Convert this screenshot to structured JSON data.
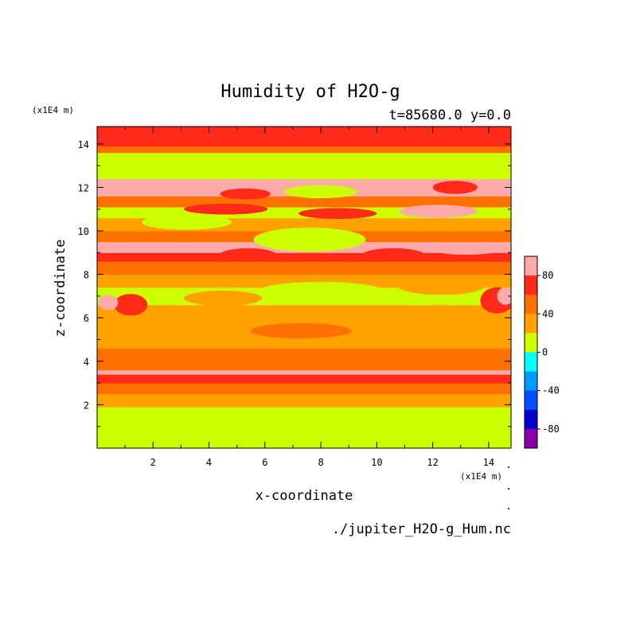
{
  "chart_data": {
    "type": "heatmap",
    "title": "Humidity of H2O-g",
    "subtitle": "t=85680.0 y=0.0",
    "xlabel": "x-coordinate",
    "ylabel": "z-coordinate",
    "x_unit": "(x1E4 m)",
    "y_unit": "(x1E4 m)",
    "filename": "./jupiter_H2O-g_Hum.nc",
    "xlim": [
      0,
      14.8
    ],
    "ylim": [
      0,
      14.8
    ],
    "x_ticks": [
      "2",
      "4",
      "6",
      "8",
      "10",
      "12",
      "14"
    ],
    "y_ticks": [
      "2",
      "4",
      "6",
      "8",
      "10",
      "12",
      "14"
    ],
    "colorbar": {
      "range": [
        -100,
        100
      ],
      "labels": [
        "80",
        "40",
        "0",
        "-40",
        "-80"
      ],
      "levels": [
        {
          "from": 80,
          "to": 100,
          "color": "#ffaaaa"
        },
        {
          "from": 60,
          "to": 80,
          "color": "#ff2a1a"
        },
        {
          "from": 40,
          "to": 60,
          "color": "#ff7000"
        },
        {
          "from": 20,
          "to": 40,
          "color": "#ffa200"
        },
        {
          "from": 0,
          "to": 20,
          "color": "#ccff00"
        },
        {
          "from": -20,
          "to": 0,
          "color": "#00ffff"
        },
        {
          "from": -40,
          "to": -20,
          "color": "#0099ff"
        },
        {
          "from": -60,
          "to": -40,
          "color": "#0050ff"
        },
        {
          "from": -80,
          "to": -60,
          "color": "#0000cc"
        },
        {
          "from": -100,
          "to": -80,
          "color": "#8800aa"
        }
      ]
    },
    "bands": [
      {
        "z0": 0.0,
        "z1": 1.4,
        "value": 10
      },
      {
        "z0": 1.4,
        "z1": 1.9,
        "value": 10
      },
      {
        "z0": 1.9,
        "z1": 2.5,
        "value": 30
      },
      {
        "z0": 2.5,
        "z1": 3.0,
        "value": 50
      },
      {
        "z0": 3.0,
        "z1": 3.4,
        "value": 70
      },
      {
        "z0": 3.4,
        "z1": 3.6,
        "value": 90
      },
      {
        "z0": 3.6,
        "z1": 4.6,
        "value": 50
      },
      {
        "z0": 4.6,
        "z1": 6.6,
        "value": 30
      },
      {
        "z0": 6.6,
        "z1": 7.4,
        "value": 10
      },
      {
        "z0": 7.4,
        "z1": 8.0,
        "value": 30
      },
      {
        "z0": 8.0,
        "z1": 8.6,
        "value": 50
      },
      {
        "z0": 8.6,
        "z1": 9.0,
        "value": 70
      },
      {
        "z0": 9.0,
        "z1": 9.5,
        "value": 90
      },
      {
        "z0": 9.5,
        "z1": 10.0,
        "value": 50
      },
      {
        "z0": 10.0,
        "z1": 10.6,
        "value": 30
      },
      {
        "z0": 10.6,
        "z1": 11.1,
        "value": 10
      },
      {
        "z0": 11.1,
        "z1": 11.6,
        "value": 50
      },
      {
        "z0": 11.6,
        "z1": 12.4,
        "value": 90
      },
      {
        "z0": 12.4,
        "z1": 13.0,
        "value": 10
      },
      {
        "z0": 13.0,
        "z1": 13.6,
        "value": 10
      },
      {
        "z0": 13.6,
        "z1": 13.9,
        "value": 50
      },
      {
        "z0": 13.9,
        "z1": 14.8,
        "value": 70
      }
    ],
    "patches": [
      {
        "x": 7.3,
        "z": 5.4,
        "rx": 1.8,
        "rz": 0.35,
        "value": 50
      },
      {
        "x": 3.5,
        "z": 5.8,
        "rx": 1.5,
        "rz": 0.3,
        "value": 30
      },
      {
        "x": 11.0,
        "z": 4.9,
        "rx": 2.2,
        "rz": 0.3,
        "value": 30
      },
      {
        "x": 8.0,
        "z": 7.2,
        "rx": 2.3,
        "rz": 0.45,
        "value": 10
      },
      {
        "x": 4.5,
        "z": 6.9,
        "rx": 1.4,
        "rz": 0.35,
        "value": 30
      },
      {
        "x": 12.3,
        "z": 7.5,
        "rx": 1.6,
        "rz": 0.45,
        "value": 30
      },
      {
        "x": 7.6,
        "z": 9.6,
        "rx": 2.0,
        "rz": 0.55,
        "value": 10
      },
      {
        "x": 3.2,
        "z": 10.4,
        "rx": 1.6,
        "rz": 0.35,
        "value": 10
      },
      {
        "x": 1.2,
        "z": 6.6,
        "rx": 0.6,
        "rz": 0.5,
        "value": 70
      },
      {
        "x": 14.3,
        "z": 6.8,
        "rx": 0.6,
        "rz": 0.6,
        "value": 70
      },
      {
        "x": 0.4,
        "z": 6.7,
        "rx": 0.35,
        "rz": 0.35,
        "value": 90
      },
      {
        "x": 14.6,
        "z": 7.0,
        "rx": 0.3,
        "rz": 0.4,
        "value": 90
      },
      {
        "x": 5.4,
        "z": 8.9,
        "rx": 1.0,
        "rz": 0.3,
        "value": 70
      },
      {
        "x": 10.6,
        "z": 8.9,
        "rx": 1.1,
        "rz": 0.3,
        "value": 70
      },
      {
        "x": 1.2,
        "z": 9.2,
        "rx": 0.9,
        "rz": 0.2,
        "value": 90
      },
      {
        "x": 13.2,
        "z": 9.1,
        "rx": 1.1,
        "rz": 0.2,
        "value": 90
      },
      {
        "x": 12.2,
        "z": 10.9,
        "rx": 1.4,
        "rz": 0.3,
        "value": 90
      },
      {
        "x": 8.6,
        "z": 10.8,
        "rx": 1.4,
        "rz": 0.25,
        "value": 70
      },
      {
        "x": 4.6,
        "z": 11.0,
        "rx": 1.5,
        "rz": 0.25,
        "value": 70
      },
      {
        "x": 8.0,
        "z": 11.8,
        "rx": 1.3,
        "rz": 0.3,
        "value": 10
      },
      {
        "x": 5.3,
        "z": 11.7,
        "rx": 0.9,
        "rz": 0.25,
        "value": 70
      },
      {
        "x": 12.8,
        "z": 12.0,
        "rx": 0.8,
        "rz": 0.3,
        "value": 70
      }
    ]
  }
}
